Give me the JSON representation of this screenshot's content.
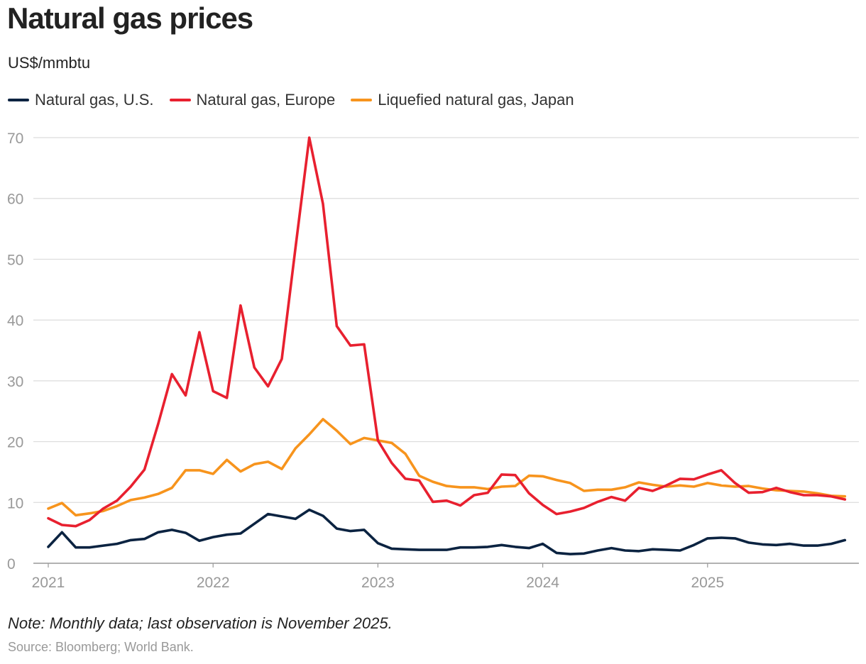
{
  "title": "Natural gas prices",
  "subtitle": "US$/mmbtu",
  "note": "Note: Monthly data; last observation is November 2025.",
  "source": "Source: Bloomberg; World Bank.",
  "chart_data": {
    "type": "line",
    "ylim": [
      0,
      70
    ],
    "yticks": [
      0,
      10,
      20,
      30,
      40,
      50,
      60,
      70
    ],
    "xticks": [
      "2021",
      "2022",
      "2023",
      "2024",
      "2025"
    ],
    "grid": true,
    "legend_position": "top-left",
    "x": [
      "2021-01",
      "2021-02",
      "2021-03",
      "2021-04",
      "2021-05",
      "2021-06",
      "2021-07",
      "2021-08",
      "2021-09",
      "2021-10",
      "2021-11",
      "2021-12",
      "2022-01",
      "2022-02",
      "2022-03",
      "2022-04",
      "2022-05",
      "2022-06",
      "2022-07",
      "2022-08",
      "2022-09",
      "2022-10",
      "2022-11",
      "2022-12",
      "2023-01",
      "2023-02",
      "2023-03",
      "2023-04",
      "2023-05",
      "2023-06",
      "2023-07",
      "2023-08",
      "2023-09",
      "2023-10",
      "2023-11",
      "2023-12",
      "2024-01",
      "2024-02",
      "2024-03",
      "2024-04",
      "2024-05",
      "2024-06",
      "2024-07",
      "2024-08",
      "2024-09",
      "2024-10",
      "2024-11",
      "2024-12",
      "2025-01",
      "2025-02",
      "2025-03",
      "2025-04",
      "2025-05",
      "2025-06",
      "2025-07",
      "2025-08",
      "2025-09",
      "2025-10",
      "2025-11"
    ],
    "series": [
      {
        "name": "Natural gas, U.S.",
        "color": "#0b2341",
        "values": [
          2.7,
          5.1,
          2.6,
          2.6,
          2.9,
          3.2,
          3.8,
          4.0,
          5.1,
          5.5,
          5.0,
          3.7,
          4.3,
          4.7,
          4.9,
          6.5,
          8.1,
          7.7,
          7.3,
          8.8,
          7.8,
          5.7,
          5.3,
          5.5,
          3.3,
          2.4,
          2.3,
          2.2,
          2.2,
          2.2,
          2.6,
          2.6,
          2.7,
          3.0,
          2.7,
          2.5,
          3.2,
          1.7,
          1.5,
          1.6,
          2.1,
          2.5,
          2.1,
          2.0,
          2.3,
          2.2,
          2.1,
          3.0,
          4.1,
          4.2,
          4.1,
          3.4,
          3.1,
          3.0,
          3.2,
          2.9,
          2.9,
          3.2,
          3.8
        ]
      },
      {
        "name": "Natural gas, Europe",
        "color": "#e8202f",
        "values": [
          7.4,
          6.3,
          6.1,
          7.1,
          9.0,
          10.3,
          12.6,
          15.4,
          22.9,
          31.1,
          27.6,
          38.0,
          28.3,
          27.2,
          42.4,
          32.2,
          29.1,
          33.6,
          51.9,
          70.0,
          59.1,
          39.0,
          35.8,
          36.0,
          20.2,
          16.5,
          13.9,
          13.6,
          10.1,
          10.3,
          9.5,
          11.2,
          11.6,
          14.6,
          14.5,
          11.5,
          9.6,
          8.1,
          8.5,
          9.1,
          10.1,
          10.9,
          10.3,
          12.4,
          11.9,
          12.8,
          13.9,
          13.8,
          14.6,
          15.3,
          13.2,
          11.6,
          11.7,
          12.4,
          11.7,
          11.2,
          11.2,
          11.0,
          10.5
        ]
      },
      {
        "name": "Liquefied natural gas, Japan",
        "color": "#f7941d",
        "values": [
          9.0,
          9.9,
          7.9,
          8.2,
          8.6,
          9.4,
          10.4,
          10.8,
          11.4,
          12.4,
          15.3,
          15.3,
          14.7,
          17.0,
          15.1,
          16.3,
          16.7,
          15.5,
          18.9,
          21.2,
          23.7,
          21.8,
          19.6,
          20.6,
          20.2,
          19.8,
          18.0,
          14.4,
          13.4,
          12.7,
          12.5,
          12.5,
          12.2,
          12.6,
          12.7,
          14.4,
          14.3,
          13.7,
          13.2,
          11.9,
          12.1,
          12.1,
          12.5,
          13.3,
          12.9,
          12.6,
          12.8,
          12.6,
          13.2,
          12.8,
          12.6,
          12.7,
          12.3,
          12.0,
          11.9,
          11.8,
          11.5,
          11.1,
          11.0
        ]
      }
    ]
  }
}
